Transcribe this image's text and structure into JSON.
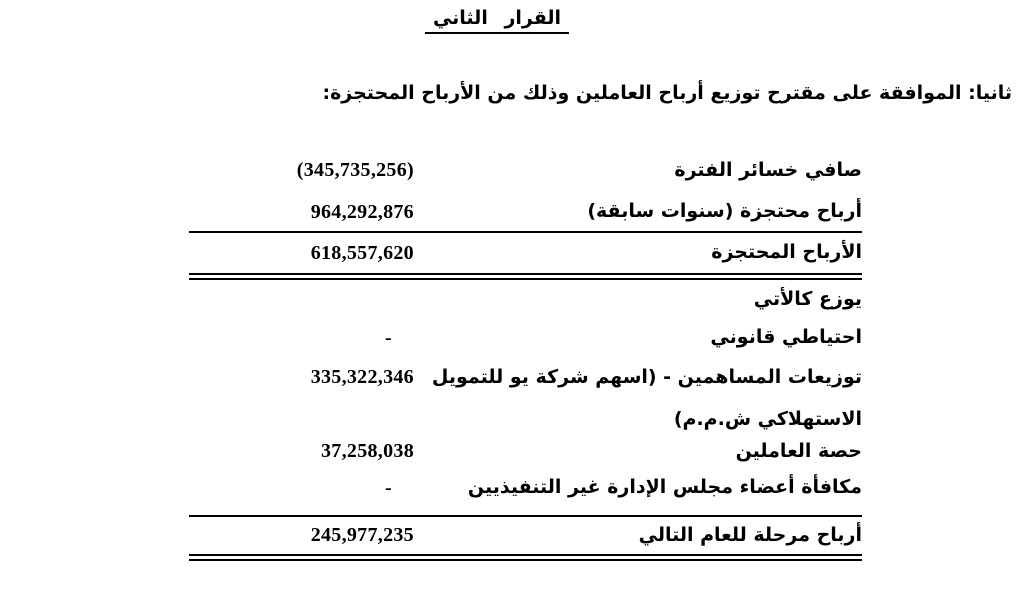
{
  "page": {
    "title": "القرار الثاني",
    "subtitle": "ثانيا: الموافقة على مقترح توزيع أرباح العاملين وذلك من الأرباح المحتجزة:"
  },
  "colors": {
    "text": "#000000",
    "background": "#ffffff"
  },
  "table": {
    "rows": [
      {
        "label": "صافي خسائر الفترة",
        "value": "(345,735,256)"
      },
      {
        "label": "أرباح محتجزة (سنوات سابقة)",
        "value": "964,292,876"
      },
      {
        "label": "الأرباح المحتجزة",
        "value": "618,557,620"
      },
      {
        "label": "يوزع كالأتي",
        "value": ""
      },
      {
        "label": "احتياطي قانوني",
        "value": "-"
      },
      {
        "label": "توزيعات المساهمين - (اسهم شركة يو للتمويل الاستهلاكي ش.م.م)",
        "value": "335,322,346"
      },
      {
        "label": "حصة العاملين",
        "value": "37,258,038"
      },
      {
        "label": "مكافأة أعضاء مجلس الإدارة غير التنفيذيين",
        "value": "-"
      },
      {
        "label": "أرباح مرحلة للعام التالي",
        "value": "245,977,235"
      }
    ]
  }
}
